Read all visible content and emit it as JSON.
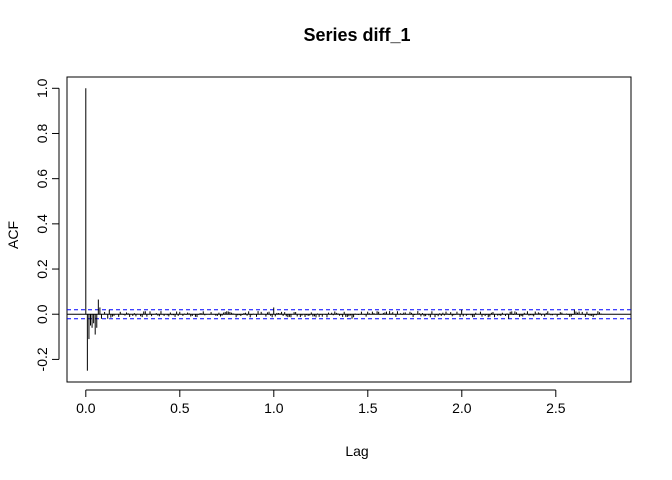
{
  "chart_data": {
    "type": "bar",
    "title": "Series  diff_1",
    "xlabel": "Lag",
    "ylabel": "ACF",
    "xlim": [
      -0.1,
      2.9
    ],
    "ylim": [
      -0.3,
      1.05
    ],
    "xticks": [
      {
        "value": 0.0,
        "label": "0.0"
      },
      {
        "value": 0.5,
        "label": "0.5"
      },
      {
        "value": 1.0,
        "label": "1.0"
      },
      {
        "value": 1.5,
        "label": "1.5"
      },
      {
        "value": 2.0,
        "label": "2.0"
      },
      {
        "value": 2.5,
        "label": "2.5"
      }
    ],
    "yticks": [
      {
        "value": -0.2,
        "label": "-0.2"
      },
      {
        "value": 0.0,
        "label": "0.0"
      },
      {
        "value": 0.2,
        "label": "0.2"
      },
      {
        "value": 0.4,
        "label": "0.4"
      },
      {
        "value": 0.6,
        "label": "0.6"
      },
      {
        "value": 0.8,
        "label": "0.8"
      },
      {
        "value": 1.0,
        "label": "1.0"
      }
    ],
    "lag_step": 0.00833,
    "max_lag": 2.74,
    "confidence_bound": 0.02,
    "notable_spikes": [
      {
        "lag": 0.0,
        "acf": 1.0
      },
      {
        "lag": 0.00833,
        "acf": -0.25
      },
      {
        "lag": 0.01667,
        "acf": -0.11
      },
      {
        "lag": 0.025,
        "acf": -0.05
      },
      {
        "lag": 0.0333,
        "acf": -0.06
      },
      {
        "lag": 0.04167,
        "acf": -0.04
      },
      {
        "lag": 0.05,
        "acf": -0.09
      },
      {
        "lag": 0.0583,
        "acf": -0.06
      },
      {
        "lag": 0.0667,
        "acf": 0.065
      },
      {
        "lag": 0.075,
        "acf": 0.03
      },
      {
        "lag": 0.0833,
        "acf": -0.02
      },
      {
        "lag": 0.1,
        "acf": 0.01
      },
      {
        "lag": 0.1167,
        "acf": -0.02
      },
      {
        "lag": 0.125,
        "acf": 0.02
      },
      {
        "lag": 0.1333,
        "acf": -0.015
      },
      {
        "lag": 1.0,
        "acf": 0.03
      },
      {
        "lag": 1.4167,
        "acf": -0.02
      },
      {
        "lag": 2.0,
        "acf": 0.02
      },
      {
        "lag": 2.25,
        "acf": -0.02
      },
      {
        "lag": 2.6,
        "acf": 0.02
      }
    ],
    "colors": {
      "spike": "#000000",
      "conf_line": "#0000ff",
      "axis": "#000000"
    },
    "grid": false
  }
}
